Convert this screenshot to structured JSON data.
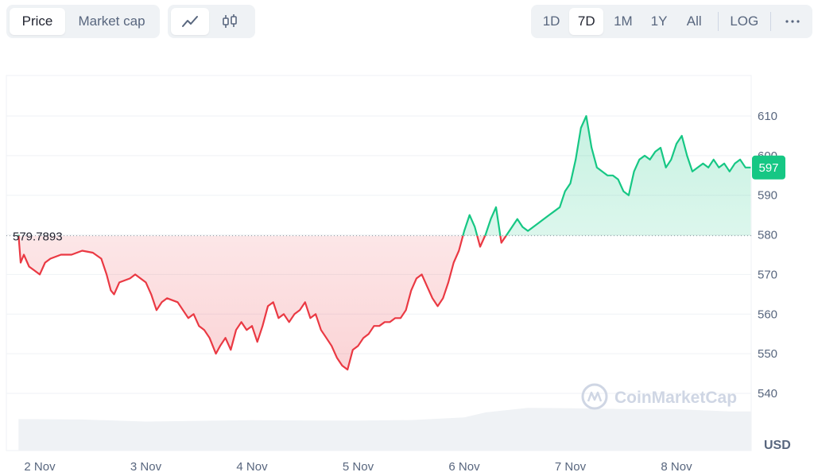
{
  "controls": {
    "type_tabs": [
      {
        "label": "Price",
        "active": true
      },
      {
        "label": "Market cap",
        "active": false
      }
    ],
    "view_icons": [
      {
        "icon": "line-chart-icon",
        "active": true
      },
      {
        "icon": "candlestick-icon",
        "active": false
      }
    ],
    "ranges": [
      {
        "label": "1D",
        "active": false
      },
      {
        "label": "7D",
        "active": true
      },
      {
        "label": "1M",
        "active": false
      },
      {
        "label": "1Y",
        "active": false
      },
      {
        "label": "All",
        "active": false
      }
    ],
    "log_label": "LOG",
    "more_icon": "more-icon"
  },
  "watermark": "CoinMarketCap",
  "colors": {
    "up": "#16c784",
    "down": "#ea3943",
    "grid": "#eff2f5",
    "volume": "#eff2f5"
  },
  "chart_data": {
    "type": "line",
    "title": "",
    "ylabel": "USD",
    "xlabel": "",
    "ylim": [
      530,
      620
    ],
    "yticks": [
      540,
      550,
      560,
      570,
      580,
      590,
      600,
      610
    ],
    "xticks": [
      "2 Nov",
      "3 Nov",
      "4 Nov",
      "5 Nov",
      "6 Nov",
      "7 Nov",
      "8 Nov"
    ],
    "baseline": {
      "value": 579.7893,
      "label": "579.7893"
    },
    "current": {
      "value": 597,
      "label": "597"
    },
    "x_start": 1.8,
    "x_end": 8.7,
    "series": [
      {
        "values": [
          [
            1.8,
            580
          ],
          [
            1.82,
            573
          ],
          [
            1.85,
            575
          ],
          [
            1.9,
            572
          ],
          [
            1.95,
            571
          ],
          [
            2.0,
            570
          ],
          [
            2.05,
            573
          ],
          [
            2.1,
            574
          ],
          [
            2.2,
            575
          ],
          [
            2.3,
            575
          ],
          [
            2.4,
            576
          ],
          [
            2.5,
            575.5
          ],
          [
            2.58,
            574
          ],
          [
            2.63,
            570
          ],
          [
            2.67,
            566
          ],
          [
            2.7,
            565
          ],
          [
            2.75,
            568
          ],
          [
            2.85,
            569
          ],
          [
            2.9,
            570
          ],
          [
            2.95,
            569
          ],
          [
            3.0,
            568
          ],
          [
            3.05,
            565
          ],
          [
            3.1,
            561
          ],
          [
            3.15,
            563
          ],
          [
            3.2,
            564
          ],
          [
            3.3,
            563
          ],
          [
            3.35,
            561
          ],
          [
            3.4,
            559
          ],
          [
            3.45,
            560
          ],
          [
            3.5,
            557
          ],
          [
            3.55,
            556
          ],
          [
            3.6,
            554
          ],
          [
            3.66,
            550
          ],
          [
            3.7,
            552
          ],
          [
            3.75,
            554
          ],
          [
            3.8,
            551
          ],
          [
            3.85,
            556
          ],
          [
            3.9,
            558
          ],
          [
            3.95,
            556
          ],
          [
            4.0,
            557
          ],
          [
            4.05,
            553
          ],
          [
            4.1,
            557
          ],
          [
            4.15,
            562
          ],
          [
            4.2,
            563
          ],
          [
            4.25,
            559
          ],
          [
            4.3,
            560
          ],
          [
            4.35,
            558
          ],
          [
            4.4,
            560
          ],
          [
            4.45,
            561
          ],
          [
            4.5,
            563
          ],
          [
            4.55,
            559
          ],
          [
            4.6,
            560
          ],
          [
            4.65,
            556
          ],
          [
            4.7,
            554
          ],
          [
            4.75,
            552
          ],
          [
            4.8,
            549
          ],
          [
            4.85,
            547
          ],
          [
            4.9,
            546
          ],
          [
            4.95,
            551
          ],
          [
            5.0,
            552
          ],
          [
            5.05,
            554
          ],
          [
            5.1,
            555
          ],
          [
            5.15,
            557
          ],
          [
            5.2,
            557
          ],
          [
            5.25,
            558
          ],
          [
            5.3,
            558
          ],
          [
            5.35,
            559
          ],
          [
            5.4,
            559
          ],
          [
            5.45,
            561
          ],
          [
            5.5,
            566
          ],
          [
            5.55,
            569
          ],
          [
            5.6,
            570
          ],
          [
            5.65,
            567
          ],
          [
            5.7,
            564
          ],
          [
            5.75,
            562
          ],
          [
            5.8,
            564
          ],
          [
            5.85,
            568
          ],
          [
            5.9,
            573
          ],
          [
            5.95,
            576
          ],
          [
            6.0,
            581
          ],
          [
            6.05,
            585
          ],
          [
            6.1,
            582
          ],
          [
            6.15,
            577
          ],
          [
            6.2,
            580
          ],
          [
            6.25,
            584
          ],
          [
            6.3,
            587
          ],
          [
            6.35,
            578
          ],
          [
            6.4,
            580
          ],
          [
            6.45,
            582
          ],
          [
            6.5,
            584
          ],
          [
            6.55,
            582
          ],
          [
            6.6,
            581
          ],
          [
            6.65,
            582
          ],
          [
            6.7,
            583
          ],
          [
            6.75,
            584
          ],
          [
            6.8,
            585
          ],
          [
            6.85,
            586
          ],
          [
            6.9,
            587
          ],
          [
            6.95,
            591
          ],
          [
            7.0,
            593
          ],
          [
            7.05,
            599
          ],
          [
            7.1,
            607
          ],
          [
            7.15,
            610
          ],
          [
            7.2,
            602
          ],
          [
            7.25,
            597
          ],
          [
            7.3,
            596
          ],
          [
            7.35,
            595
          ],
          [
            7.4,
            595
          ],
          [
            7.45,
            594
          ],
          [
            7.5,
            591
          ],
          [
            7.55,
            590
          ],
          [
            7.6,
            596
          ],
          [
            7.65,
            599
          ],
          [
            7.7,
            600
          ],
          [
            7.75,
            599
          ],
          [
            7.8,
            601
          ],
          [
            7.85,
            602
          ],
          [
            7.9,
            597
          ],
          [
            7.95,
            599
          ],
          [
            8.0,
            603
          ],
          [
            8.05,
            605
          ],
          [
            8.1,
            600
          ],
          [
            8.15,
            596
          ],
          [
            8.2,
            597
          ],
          [
            8.25,
            598
          ],
          [
            8.3,
            597
          ],
          [
            8.35,
            599
          ],
          [
            8.4,
            597
          ],
          [
            8.45,
            598
          ],
          [
            8.5,
            596
          ],
          [
            8.55,
            598
          ],
          [
            8.6,
            599
          ],
          [
            8.65,
            597
          ],
          [
            8.7,
            597
          ]
        ]
      }
    ],
    "volume_series": [
      [
        1.8,
        16.5
      ],
      [
        2.4,
        16.3
      ],
      [
        3.0,
        15.2
      ],
      [
        3.5,
        15.6
      ],
      [
        4.0,
        15.9
      ],
      [
        4.5,
        15.8
      ],
      [
        5.0,
        15.7
      ],
      [
        5.5,
        16.0
      ],
      [
        6.0,
        17.4
      ],
      [
        6.2,
        20.0
      ],
      [
        6.6,
        22.4
      ],
      [
        7.0,
        22.2
      ],
      [
        7.5,
        21.8
      ],
      [
        8.0,
        21.7
      ],
      [
        8.5,
        20.5
      ],
      [
        8.7,
        20.5
      ]
    ]
  }
}
